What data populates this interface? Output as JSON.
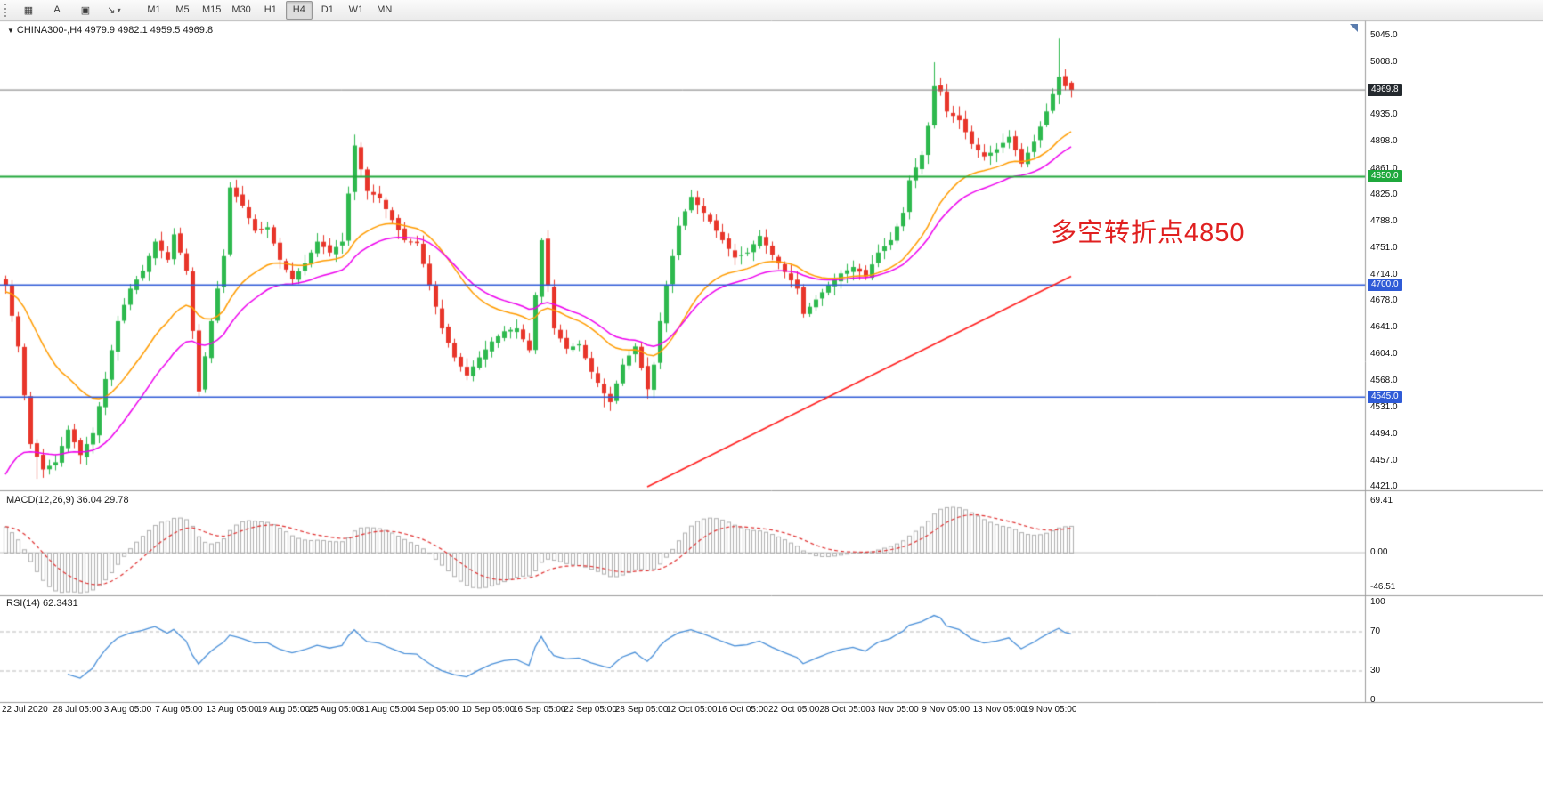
{
  "toolbar": {
    "icons": [
      {
        "name": "chart-window-icon",
        "glyph": "▦"
      },
      {
        "name": "text-label-tool-icon",
        "glyph": "A"
      },
      {
        "name": "text-box-tool-icon",
        "glyph": "▣"
      },
      {
        "name": "arrow-tool-icon",
        "glyph": "↘",
        "has_dropdown": true
      }
    ],
    "timeframes": [
      {
        "label": "M1",
        "active": false
      },
      {
        "label": "M5",
        "active": false
      },
      {
        "label": "M15",
        "active": false
      },
      {
        "label": "M30",
        "active": false
      },
      {
        "label": "H1",
        "active": false
      },
      {
        "label": "H4",
        "active": true
      },
      {
        "label": "D1",
        "active": false
      },
      {
        "label": "W1",
        "active": false
      },
      {
        "label": "MN",
        "active": false
      }
    ]
  },
  "chart": {
    "symbol_line": "CHINA300-,H4 4979.9 4982.1 4959.5 4969.8",
    "macd_label": "MACD(12,26,9) 36.04 29.78",
    "rsi_label": "RSI(14) 62.3431",
    "annotation": {
      "text": "多空转折点4850",
      "color": "#e02020"
    },
    "axis": {
      "main_ticks": [
        "5045.0",
        "5008.0",
        "4935.0",
        "4898.0",
        "4861.0",
        "4825.0",
        "4788.0",
        "4751.0",
        "4714.0",
        "4678.0",
        "4641.0",
        "4604.0",
        "4568.0",
        "4531.0",
        "4494.0",
        "4457.0",
        "4421.0"
      ],
      "badges": [
        {
          "label": "4969.8",
          "value": 4969.8,
          "type": "current-price",
          "bg": "#24292e"
        },
        {
          "label": "4850.0",
          "value": 4850,
          "type": "level",
          "bg": "#1fa83c"
        },
        {
          "label": "4700.0",
          "value": 4700,
          "type": "level",
          "bg": "#2f5bd7"
        },
        {
          "label": "4545.0",
          "value": 4545,
          "type": "level",
          "bg": "#2f5bd7"
        }
      ],
      "macd_ticks": [
        "69.41",
        "0.00",
        "-46.51"
      ],
      "rsi_ticks": [
        "100",
        "70",
        "30",
        "0"
      ]
    },
    "time_labels": [
      "22 Jul 2020",
      "28 Jul 05:00",
      "3 Aug 05:00",
      "7 Aug 05:00",
      "13 Aug 05:00",
      "19 Aug 05:00",
      "25 Aug 05:00",
      "31 Aug 05:00",
      "4 Sep 05:00",
      "10 Sep 05:00",
      "16 Sep 05:00",
      "22 Sep 05:00",
      "28 Sep 05:00",
      "12 Oct 05:00",
      "16 Oct 05:00",
      "22 Oct 05:00",
      "28 Oct 05:00",
      "3 Nov 05:00",
      "9 Nov 05:00",
      "13 Nov 05:00",
      "19 Nov 05:00"
    ]
  },
  "chart_data": {
    "type": "candlestick",
    "symbol": "CHINA300-",
    "timeframe": "H4",
    "ohlc_current": {
      "open": 4979.9,
      "high": 4982.1,
      "low": 4959.5,
      "close": 4969.8
    },
    "current_price": 4969.8,
    "price_range": [
      4421,
      5045
    ],
    "levels": [
      {
        "price": 4850,
        "color": "#22a83c",
        "width": 2
      },
      {
        "price": 4700,
        "color": "#2f5bd7",
        "width": 1.6
      },
      {
        "price": 4545,
        "color": "#2f5bd7",
        "width": 1.6
      }
    ],
    "trendline": {
      "i1": 103,
      "p1": 4421,
      "i2": 171,
      "p2": 4712,
      "color": "#ff1f1f"
    },
    "close_waypoints": [
      [
        0,
        4700
      ],
      [
        2,
        4615
      ],
      [
        4,
        4480
      ],
      [
        6,
        4445
      ],
      [
        8,
        4455
      ],
      [
        10,
        4500
      ],
      [
        12,
        4465
      ],
      [
        14,
        4495
      ],
      [
        16,
        4570
      ],
      [
        18,
        4650
      ],
      [
        20,
        4695
      ],
      [
        22,
        4720
      ],
      [
        24,
        4760
      ],
      [
        26,
        4735
      ],
      [
        27,
        4770
      ],
      [
        29,
        4720
      ],
      [
        31,
        4553
      ],
      [
        33,
        4650
      ],
      [
        35,
        4740
      ],
      [
        36,
        4835
      ],
      [
        38,
        4810
      ],
      [
        40,
        4775
      ],
      [
        42,
        4780
      ],
      [
        44,
        4735
      ],
      [
        46,
        4708
      ],
      [
        48,
        4730
      ],
      [
        50,
        4760
      ],
      [
        52,
        4745
      ],
      [
        54,
        4760
      ],
      [
        56,
        4893
      ],
      [
        57,
        4860
      ],
      [
        58,
        4830
      ],
      [
        60,
        4820
      ],
      [
        62,
        4790
      ],
      [
        64,
        4762
      ],
      [
        66,
        4758
      ],
      [
        68,
        4700
      ],
      [
        70,
        4640
      ],
      [
        72,
        4600
      ],
      [
        74,
        4575
      ],
      [
        76,
        4600
      ],
      [
        78,
        4622
      ],
      [
        80,
        4636
      ],
      [
        82,
        4640
      ],
      [
        84,
        4610
      ],
      [
        86,
        4762
      ],
      [
        87,
        4700
      ],
      [
        88,
        4640
      ],
      [
        90,
        4612
      ],
      [
        92,
        4618
      ],
      [
        94,
        4580
      ],
      [
        96,
        4550
      ],
      [
        97,
        4538
      ],
      [
        99,
        4590
      ],
      [
        101,
        4615
      ],
      [
        103,
        4556
      ],
      [
        104,
        4590
      ],
      [
        105,
        4650
      ],
      [
        106,
        4700
      ],
      [
        107,
        4740
      ],
      [
        108,
        4782
      ],
      [
        110,
        4822
      ],
      [
        112,
        4800
      ],
      [
        113,
        4788
      ],
      [
        115,
        4762
      ],
      [
        117,
        4738
      ],
      [
        119,
        4745
      ],
      [
        121,
        4768
      ],
      [
        123,
        4742
      ],
      [
        125,
        4718
      ],
      [
        127,
        4695
      ],
      [
        128,
        4660
      ],
      [
        130,
        4680
      ],
      [
        132,
        4700
      ],
      [
        134,
        4716
      ],
      [
        136,
        4725
      ],
      [
        138,
        4712
      ],
      [
        140,
        4745
      ],
      [
        142,
        4762
      ],
      [
        144,
        4800
      ],
      [
        145,
        4845
      ],
      [
        147,
        4880
      ],
      [
        148,
        4920
      ],
      [
        149,
        4975
      ],
      [
        150,
        4968
      ],
      [
        151,
        4940
      ],
      [
        153,
        4928
      ],
      [
        155,
        4895
      ],
      [
        157,
        4878
      ],
      [
        159,
        4888
      ],
      [
        161,
        4905
      ],
      [
        163,
        4868
      ],
      [
        165,
        4898
      ],
      [
        167,
        4940
      ],
      [
        169,
        4988
      ],
      [
        170,
        4975
      ],
      [
        171,
        4970
      ]
    ],
    "overrides": {
      "5": {
        "low": 4432
      },
      "31": {
        "low": 4546
      },
      "56": {
        "high": 4908
      },
      "96": {
        "low": 4531
      },
      "103": {
        "low": 4543
      },
      "149": {
        "high": 5008
      },
      "169": {
        "high": 5041
      },
      "171": {
        "open": 4979.9,
        "high": 4982.1,
        "low": 4959.5,
        "close": 4969.8
      }
    },
    "colors": {
      "up": "#2eb94e",
      "down": "#e8352a",
      "ma_fast": "#ff9c00",
      "ma_slow": "#ee00ee",
      "macd_hist": "#b0b0b0",
      "macd_signal": "#e03030",
      "rsi": "#4a90d9",
      "current_price_line": "#777777"
    },
    "macd_range": [
      -46.51,
      69.41
    ],
    "macd_values": {
      "main": 36.04,
      "signal": 29.78
    },
    "rsi_value": 62.3431,
    "rsi_levels": [
      70,
      30
    ]
  }
}
